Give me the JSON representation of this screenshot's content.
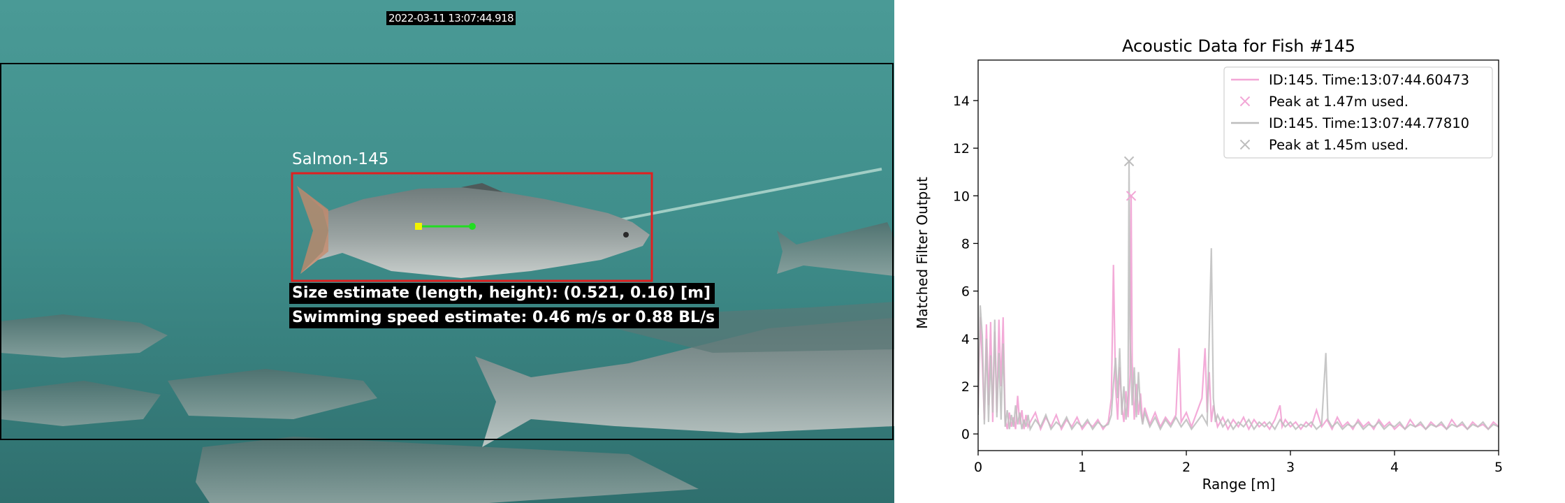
{
  "video_panel": {
    "timestamp": "2022-03-11  13:07:44.918",
    "detection_label": "Salmon-145",
    "size_text": "Size estimate (length, height): (0.521, 0.16) [m]",
    "speed_text": "Swimming speed estimate: 0.46 m/s or 0.88 BL/s",
    "colors": {
      "water": "#3f8f8c",
      "roi_box": "#000000",
      "detection_box": "#e02020",
      "speed_line": "#22dd22",
      "speed_start": "#f2f200",
      "speed_end": "#22dd22"
    }
  },
  "chart_data": {
    "type": "line",
    "title": "Acoustic Data for Fish #145",
    "xlabel": "Range [m]",
    "ylabel": "Matched Filter Output",
    "xlim": [
      0,
      5
    ],
    "ylim": [
      -0.7,
      15.7
    ],
    "xticks": [
      0,
      1,
      2,
      3,
      4,
      5
    ],
    "yticks": [
      0,
      2,
      4,
      6,
      8,
      10,
      12,
      14
    ],
    "grid": false,
    "legend_position": "top-right",
    "series": [
      {
        "name": "ID:145. Time:13:07:44.60473",
        "color": "#f2a6d6",
        "peak_label": "Peak at 1.47m used.",
        "peak": [
          1.47,
          10.0
        ],
        "points": [
          [
            0.0,
            1.1
          ],
          [
            0.02,
            4.9
          ],
          [
            0.04,
            3.0
          ],
          [
            0.06,
            0.6
          ],
          [
            0.08,
            4.6
          ],
          [
            0.1,
            1.2
          ],
          [
            0.12,
            4.7
          ],
          [
            0.14,
            0.5
          ],
          [
            0.16,
            4.3
          ],
          [
            0.18,
            0.9
          ],
          [
            0.2,
            4.8
          ],
          [
            0.22,
            2.0
          ],
          [
            0.24,
            4.9
          ],
          [
            0.26,
            0.6
          ],
          [
            0.28,
            0.2
          ],
          [
            0.3,
            0.9
          ],
          [
            0.32,
            0.3
          ],
          [
            0.34,
            0.7
          ],
          [
            0.36,
            0.2
          ],
          [
            0.38,
            1.6
          ],
          [
            0.4,
            0.4
          ],
          [
            0.42,
            1.0
          ],
          [
            0.44,
            0.2
          ],
          [
            0.46,
            0.8
          ],
          [
            0.48,
            0.3
          ],
          [
            0.5,
            0.5
          ],
          [
            0.55,
            0.9
          ],
          [
            0.6,
            0.2
          ],
          [
            0.65,
            0.7
          ],
          [
            0.7,
            0.3
          ],
          [
            0.75,
            0.8
          ],
          [
            0.8,
            0.2
          ],
          [
            0.85,
            0.6
          ],
          [
            0.9,
            0.3
          ],
          [
            0.95,
            0.7
          ],
          [
            1.0,
            0.2
          ],
          [
            1.05,
            0.5
          ],
          [
            1.1,
            0.3
          ],
          [
            1.15,
            0.6
          ],
          [
            1.2,
            0.2
          ],
          [
            1.25,
            0.5
          ],
          [
            1.28,
            1.5
          ],
          [
            1.3,
            7.1
          ],
          [
            1.32,
            2.0
          ],
          [
            1.34,
            0.6
          ],
          [
            1.36,
            2.8
          ],
          [
            1.38,
            1.2
          ],
          [
            1.4,
            0.5
          ],
          [
            1.42,
            1.8
          ],
          [
            1.44,
            0.7
          ],
          [
            1.46,
            2.5
          ],
          [
            1.47,
            10.0
          ],
          [
            1.48,
            3.0
          ],
          [
            1.5,
            0.6
          ],
          [
            1.52,
            2.1
          ],
          [
            1.54,
            0.8
          ],
          [
            1.56,
            1.7
          ],
          [
            1.58,
            0.5
          ],
          [
            1.6,
            1.1
          ],
          [
            1.65,
            0.4
          ],
          [
            1.7,
            0.9
          ],
          [
            1.75,
            0.3
          ],
          [
            1.8,
            0.7
          ],
          [
            1.85,
            0.4
          ],
          [
            1.9,
            0.8
          ],
          [
            1.93,
            3.6
          ],
          [
            1.95,
            0.5
          ],
          [
            2.0,
            0.9
          ],
          [
            2.05,
            0.3
          ],
          [
            2.1,
            0.9
          ],
          [
            2.15,
            1.5
          ],
          [
            2.18,
            3.6
          ],
          [
            2.2,
            0.9
          ],
          [
            2.22,
            2.6
          ],
          [
            2.24,
            0.5
          ],
          [
            2.26,
            1.2
          ],
          [
            2.3,
            0.3
          ],
          [
            2.35,
            0.7
          ],
          [
            2.4,
            0.2
          ],
          [
            2.45,
            0.6
          ],
          [
            2.5,
            0.3
          ],
          [
            2.55,
            0.7
          ],
          [
            2.6,
            0.2
          ],
          [
            2.65,
            0.6
          ],
          [
            2.7,
            0.3
          ],
          [
            2.75,
            0.5
          ],
          [
            2.8,
            0.2
          ],
          [
            2.85,
            0.6
          ],
          [
            2.9,
            1.2
          ],
          [
            2.92,
            0.3
          ],
          [
            2.95,
            0.6
          ],
          [
            3.0,
            0.3
          ],
          [
            3.05,
            0.5
          ],
          [
            3.1,
            0.2
          ],
          [
            3.15,
            0.5
          ],
          [
            3.2,
            0.3
          ],
          [
            3.25,
            1.0
          ],
          [
            3.3,
            0.3
          ],
          [
            3.35,
            0.6
          ],
          [
            3.4,
            0.2
          ],
          [
            3.45,
            0.7
          ],
          [
            3.5,
            0.3
          ],
          [
            3.55,
            0.5
          ],
          [
            3.6,
            0.2
          ],
          [
            3.65,
            0.6
          ],
          [
            3.7,
            0.3
          ],
          [
            3.75,
            0.5
          ],
          [
            3.8,
            0.2
          ],
          [
            3.85,
            0.6
          ],
          [
            3.9,
            0.3
          ],
          [
            3.95,
            0.5
          ],
          [
            4.0,
            0.2
          ],
          [
            4.05,
            0.4
          ],
          [
            4.1,
            0.2
          ],
          [
            4.15,
            0.6
          ],
          [
            4.2,
            0.3
          ],
          [
            4.25,
            0.4
          ],
          [
            4.3,
            0.2
          ],
          [
            4.35,
            0.5
          ],
          [
            4.4,
            0.3
          ],
          [
            4.45,
            0.4
          ],
          [
            4.5,
            0.2
          ],
          [
            4.55,
            0.6
          ],
          [
            4.6,
            0.3
          ],
          [
            4.65,
            0.4
          ],
          [
            4.7,
            0.2
          ],
          [
            4.75,
            0.5
          ],
          [
            4.8,
            0.3
          ],
          [
            4.85,
            0.4
          ],
          [
            4.9,
            0.2
          ],
          [
            4.95,
            0.5
          ],
          [
            5.0,
            0.3
          ]
        ]
      },
      {
        "name": "ID:145. Time:13:07:44.77810",
        "color": "#bdbdbd",
        "peak_label": "Peak at 1.45m used.",
        "peak": [
          1.45,
          11.45
        ],
        "points": [
          [
            0.0,
            0.8
          ],
          [
            0.02,
            5.4
          ],
          [
            0.04,
            4.1
          ],
          [
            0.06,
            0.4
          ],
          [
            0.08,
            4.0
          ],
          [
            0.1,
            0.5
          ],
          [
            0.12,
            3.3
          ],
          [
            0.14,
            0.9
          ],
          [
            0.16,
            4.8
          ],
          [
            0.18,
            0.7
          ],
          [
            0.2,
            3.4
          ],
          [
            0.22,
            0.6
          ],
          [
            0.24,
            3.8
          ],
          [
            0.26,
            0.3
          ],
          [
            0.28,
            1.0
          ],
          [
            0.3,
            0.2
          ],
          [
            0.32,
            0.8
          ],
          [
            0.34,
            0.3
          ],
          [
            0.36,
            1.2
          ],
          [
            0.38,
            0.4
          ],
          [
            0.4,
            0.9
          ],
          [
            0.42,
            0.2
          ],
          [
            0.44,
            0.6
          ],
          [
            0.46,
            0.3
          ],
          [
            0.48,
            0.8
          ],
          [
            0.5,
            0.2
          ],
          [
            0.55,
            0.6
          ],
          [
            0.6,
            0.3
          ],
          [
            0.65,
            0.8
          ],
          [
            0.7,
            0.2
          ],
          [
            0.75,
            0.5
          ],
          [
            0.8,
            0.3
          ],
          [
            0.85,
            0.7
          ],
          [
            0.9,
            0.2
          ],
          [
            0.95,
            0.5
          ],
          [
            1.0,
            0.3
          ],
          [
            1.05,
            0.6
          ],
          [
            1.1,
            0.2
          ],
          [
            1.15,
            0.5
          ],
          [
            1.2,
            0.3
          ],
          [
            1.25,
            0.4
          ],
          [
            1.28,
            0.8
          ],
          [
            1.3,
            2.1
          ],
          [
            1.32,
            3.2
          ],
          [
            1.34,
            1.5
          ],
          [
            1.36,
            3.6
          ],
          [
            1.38,
            0.8
          ],
          [
            1.4,
            2.0
          ],
          [
            1.42,
            0.6
          ],
          [
            1.44,
            1.6
          ],
          [
            1.45,
            11.45
          ],
          [
            1.46,
            4.0
          ],
          [
            1.48,
            1.2
          ],
          [
            1.5,
            2.8
          ],
          [
            1.52,
            0.7
          ],
          [
            1.54,
            2.6
          ],
          [
            1.56,
            1.0
          ],
          [
            1.58,
            0.4
          ],
          [
            1.6,
            0.9
          ],
          [
            1.65,
            0.3
          ],
          [
            1.7,
            0.7
          ],
          [
            1.75,
            0.2
          ],
          [
            1.8,
            0.6
          ],
          [
            1.85,
            0.3
          ],
          [
            1.9,
            0.7
          ],
          [
            1.95,
            0.3
          ],
          [
            2.0,
            0.6
          ],
          [
            2.05,
            0.2
          ],
          [
            2.1,
            0.5
          ],
          [
            2.15,
            0.8
          ],
          [
            2.2,
            0.4
          ],
          [
            2.24,
            7.8
          ],
          [
            2.26,
            1.5
          ],
          [
            2.28,
            0.5
          ],
          [
            2.3,
            0.8
          ],
          [
            2.35,
            0.3
          ],
          [
            2.4,
            0.6
          ],
          [
            2.45,
            0.2
          ],
          [
            2.5,
            0.5
          ],
          [
            2.55,
            0.3
          ],
          [
            2.6,
            0.6
          ],
          [
            2.65,
            0.2
          ],
          [
            2.7,
            0.5
          ],
          [
            2.75,
            0.3
          ],
          [
            2.8,
            0.5
          ],
          [
            2.85,
            0.2
          ],
          [
            2.9,
            0.6
          ],
          [
            2.95,
            0.3
          ],
          [
            3.0,
            0.5
          ],
          [
            3.05,
            0.2
          ],
          [
            3.1,
            0.4
          ],
          [
            3.15,
            0.3
          ],
          [
            3.2,
            0.5
          ],
          [
            3.25,
            0.2
          ],
          [
            3.3,
            0.4
          ],
          [
            3.34,
            3.4
          ],
          [
            3.36,
            0.6
          ],
          [
            3.4,
            0.3
          ],
          [
            3.45,
            0.5
          ],
          [
            3.5,
            0.2
          ],
          [
            3.55,
            0.4
          ],
          [
            3.6,
            0.3
          ],
          [
            3.65,
            0.5
          ],
          [
            3.7,
            0.2
          ],
          [
            3.75,
            0.4
          ],
          [
            3.8,
            0.3
          ],
          [
            3.85,
            0.5
          ],
          [
            3.9,
            0.2
          ],
          [
            3.95,
            0.4
          ],
          [
            4.0,
            0.3
          ],
          [
            4.05,
            0.5
          ],
          [
            4.1,
            0.2
          ],
          [
            4.15,
            0.4
          ],
          [
            4.2,
            0.3
          ],
          [
            4.25,
            0.5
          ],
          [
            4.3,
            0.2
          ],
          [
            4.35,
            0.4
          ],
          [
            4.4,
            0.3
          ],
          [
            4.45,
            0.5
          ],
          [
            4.5,
            0.2
          ],
          [
            4.55,
            0.4
          ],
          [
            4.6,
            0.3
          ],
          [
            4.65,
            0.5
          ],
          [
            4.7,
            0.2
          ],
          [
            4.75,
            0.4
          ],
          [
            4.8,
            0.3
          ],
          [
            4.85,
            0.5
          ],
          [
            4.9,
            0.2
          ],
          [
            4.95,
            0.4
          ],
          [
            5.0,
            0.3
          ]
        ]
      }
    ]
  }
}
